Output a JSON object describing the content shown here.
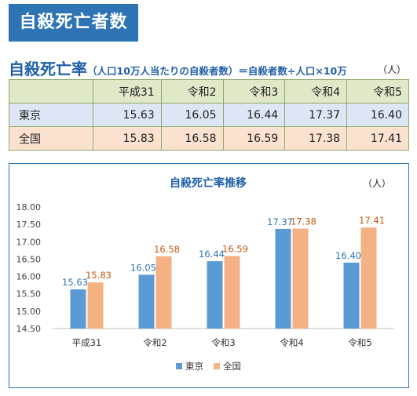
{
  "banner": {
    "title": "自殺死亡者数"
  },
  "heading": {
    "title": "自殺死亡率",
    "note": "（人口10万人当たりの自殺者数）＝自殺者数÷人口×10万",
    "unit": "（人）"
  },
  "table": {
    "headers": [
      "平成31",
      "令和2",
      "令和3",
      "令和4",
      "令和5"
    ],
    "rows": [
      {
        "label": "東京",
        "values": [
          "15.63",
          "16.05",
          "16.44",
          "17.37",
          "16.40"
        ]
      },
      {
        "label": "全国",
        "values": [
          "15.83",
          "16.58",
          "16.59",
          "17.38",
          "17.41"
        ]
      }
    ]
  },
  "chart_data": {
    "type": "bar",
    "title": "自殺死亡率推移",
    "unit_label": "（人）",
    "categories": [
      "平成31",
      "令和2",
      "令和3",
      "令和4",
      "令和5"
    ],
    "series": [
      {
        "name": "東京",
        "values": [
          15.63,
          16.05,
          16.44,
          17.37,
          16.4
        ],
        "color": "#5b9bd5",
        "label_color": "#2e75b6"
      },
      {
        "name": "全国",
        "values": [
          15.83,
          16.58,
          16.59,
          17.38,
          17.41
        ],
        "color": "#f4b183",
        "label_color": "#c55a11"
      }
    ],
    "yticks": [
      "18.00",
      "17.50",
      "17.00",
      "16.50",
      "16.00",
      "15.50",
      "15.00",
      "14.50"
    ],
    "ylim": [
      14.5,
      18.0
    ],
    "grid": false,
    "legend_position": "bottom"
  }
}
